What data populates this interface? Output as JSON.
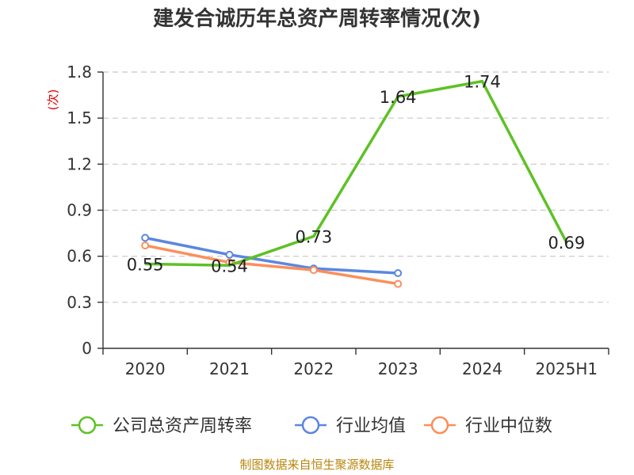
{
  "chart_data": {
    "type": "line",
    "title": "建发合诚历年总资产周转率情况(次)",
    "ylabel": "(次)",
    "xlabel": "",
    "categories": [
      "2020",
      "2021",
      "2022",
      "2023",
      "2024",
      "2025H1"
    ],
    "ylim": [
      0,
      1.8
    ],
    "yticks": [
      "0",
      "0.3",
      "0.6",
      "0.9",
      "1.2",
      "1.5",
      "1.8"
    ],
    "grid": true,
    "legend_position": "bottom",
    "series": [
      {
        "name": "公司总资产周转率",
        "color": "#5ec126",
        "values": [
          0.55,
          0.54,
          0.73,
          1.64,
          1.74,
          0.69
        ],
        "labels": [
          "0.55",
          "0.54",
          "0.73",
          "1.64",
          "1.74",
          "0.69"
        ]
      },
      {
        "name": "行业均值",
        "color": "#5b87e0",
        "values": [
          0.72,
          0.61,
          0.52,
          0.49,
          null,
          null
        ]
      },
      {
        "name": "行业中位数",
        "color": "#fb8f5b",
        "values": [
          0.67,
          0.56,
          0.51,
          0.42,
          null,
          null
        ]
      }
    ]
  },
  "footer": {
    "source": "制图数据来自恒生聚源数据库"
  }
}
